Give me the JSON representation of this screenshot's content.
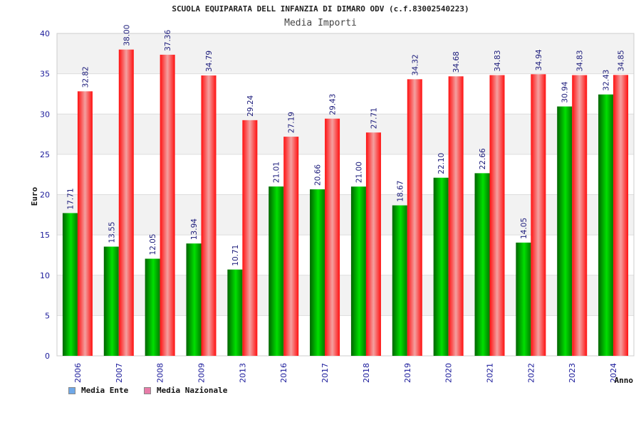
{
  "chart_data": {
    "type": "bar",
    "title": "SCUOLA EQUIPARATA DELL INFANZIA DI DIMARO ODV (c.f.83002540223)",
    "subtitle": "Media Importi",
    "xlabel": "Anno",
    "ylabel": "Euro",
    "ylim": [
      0,
      40
    ],
    "yticks": [
      0,
      5,
      10,
      15,
      20,
      25,
      30,
      35,
      40
    ],
    "grid": true,
    "legend_position": "bottom-left",
    "categories": [
      "2006",
      "2007",
      "2008",
      "2009",
      "2013",
      "2016",
      "2017",
      "2018",
      "2019",
      "2020",
      "2021",
      "2022",
      "2023",
      "2024"
    ],
    "series": [
      {
        "name": "Media Ente",
        "color": "#00c000",
        "legend_color": "#6fa8e8",
        "values": [
          17.71,
          13.55,
          12.05,
          13.94,
          10.71,
          21.01,
          20.66,
          21.0,
          18.67,
          22.1,
          22.66,
          14.05,
          30.94,
          32.43
        ],
        "labels": [
          "17.71",
          "13.55",
          "12.05",
          "13.94",
          "10.71",
          "21.01",
          "20.66",
          "21.00",
          "18.67",
          "22.10",
          "22.66",
          "14.05",
          "30.94",
          "32.43"
        ]
      },
      {
        "name": "Media Nazionale",
        "color": "#f01010",
        "legend_color": "#e87ca8",
        "values": [
          32.82,
          38.0,
          37.36,
          34.79,
          29.24,
          27.19,
          29.43,
          27.71,
          34.32,
          34.68,
          34.83,
          34.94,
          34.83,
          34.85
        ],
        "labels": [
          "32.82",
          "38.00",
          "37.36",
          "34.79",
          "29.24",
          "27.19",
          "29.43",
          "27.71",
          "34.32",
          "34.68",
          "34.83",
          "34.94",
          "34.83",
          "34.85"
        ]
      }
    ]
  }
}
